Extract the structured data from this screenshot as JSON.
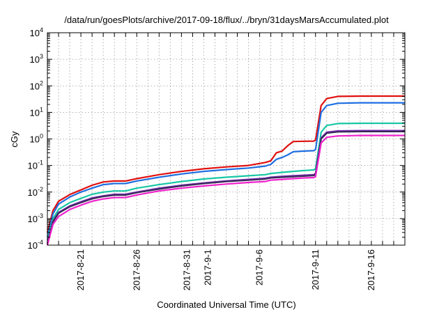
{
  "chart_data": {
    "type": "line",
    "title": "/data/run/goesPlots/archive/2017-09-18/flux/../bryn/31daysMarsAccumulated.plot",
    "xlabel": "Coordinated Universal Time (UTC)",
    "ylabel": "cGy",
    "yscale": "log",
    "ylim": [
      0.0001,
      10000
    ],
    "xlim": [
      "2017-08-18",
      "2017-09-19"
    ],
    "x_ticks": [
      "2017-8-21",
      "2017-8-26",
      "2017-8-31",
      "2017-9-1",
      "2017-9-6",
      "2017-9-11",
      "2017-9-16"
    ],
    "y_ticks": [
      {
        "base": "10",
        "exp": "-4"
      },
      {
        "base": "10",
        "exp": "-3"
      },
      {
        "base": "10",
        "exp": "-2"
      },
      {
        "base": "10",
        "exp": "-1"
      },
      {
        "base": "10",
        "exp": "0"
      },
      {
        "base": "10",
        "exp": "1"
      },
      {
        "base": "10",
        "exp": "2"
      },
      {
        "base": "10",
        "exp": "3"
      },
      {
        "base": "10",
        "exp": "4"
      }
    ],
    "grid": true,
    "legend": "none",
    "series": [
      {
        "color": "#e01010",
        "x": [
          "2017-08-18",
          "2017-08-18 12:00",
          "2017-08-19",
          "2017-08-20",
          "2017-08-21",
          "2017-08-22",
          "2017-08-23",
          "2017-08-24",
          "2017-08-25",
          "2017-08-26",
          "2017-08-28",
          "2017-08-30",
          "2017-09-01",
          "2017-09-03",
          "2017-09-05",
          "2017-09-06 12:00",
          "2017-09-07",
          "2017-09-07 12:00",
          "2017-09-08",
          "2017-09-08 12:00",
          "2017-09-09",
          "2017-09-10",
          "2017-09-10 20:00",
          "2017-09-11",
          "2017-09-11 12:00",
          "2017-09-12",
          "2017-09-13",
          "2017-09-15",
          "2017-09-19"
        ],
        "y": [
          0.0003,
          0.002,
          0.0045,
          0.008,
          0.012,
          0.018,
          0.024,
          0.026,
          0.026,
          0.032,
          0.045,
          0.06,
          0.075,
          0.088,
          0.1,
          0.13,
          0.15,
          0.3,
          0.35,
          0.55,
          0.8,
          0.82,
          0.83,
          0.9,
          18,
          33,
          40,
          41,
          41
        ]
      },
      {
        "color": "#1f6fe0",
        "x": [
          "2017-08-18",
          "2017-08-18 12:00",
          "2017-08-19",
          "2017-08-20",
          "2017-08-21",
          "2017-08-22",
          "2017-08-23",
          "2017-08-24",
          "2017-08-25",
          "2017-08-26",
          "2017-08-28",
          "2017-08-30",
          "2017-09-01",
          "2017-09-03",
          "2017-09-05",
          "2017-09-06 12:00",
          "2017-09-07",
          "2017-09-07 12:00",
          "2017-09-08",
          "2017-09-08 12:00",
          "2017-09-09",
          "2017-09-10",
          "2017-09-10 20:00",
          "2017-09-11",
          "2017-09-11 12:00",
          "2017-09-12",
          "2017-09-13",
          "2017-09-15",
          "2017-09-19"
        ],
        "y": [
          0.0002,
          0.0015,
          0.0035,
          0.0065,
          0.01,
          0.014,
          0.019,
          0.021,
          0.021,
          0.026,
          0.036,
          0.048,
          0.06,
          0.07,
          0.08,
          0.095,
          0.11,
          0.17,
          0.2,
          0.25,
          0.33,
          0.35,
          0.36,
          0.4,
          10,
          18,
          22,
          23,
          23
        ]
      },
      {
        "color": "#19c7a6",
        "x": [
          "2017-08-18",
          "2017-08-18 12:00",
          "2017-08-19",
          "2017-08-20",
          "2017-08-21",
          "2017-08-22",
          "2017-08-23",
          "2017-08-24",
          "2017-08-25",
          "2017-08-26",
          "2017-08-28",
          "2017-08-30",
          "2017-09-01",
          "2017-09-03",
          "2017-09-05",
          "2017-09-06 12:00",
          "2017-09-07",
          "2017-09-08",
          "2017-09-09",
          "2017-09-10",
          "2017-09-10 20:00",
          "2017-09-11",
          "2017-09-11 12:00",
          "2017-09-12",
          "2017-09-13",
          "2017-09-15",
          "2017-09-19"
        ],
        "y": [
          0.00015,
          0.001,
          0.0022,
          0.004,
          0.0058,
          0.0082,
          0.01,
          0.011,
          0.011,
          0.014,
          0.019,
          0.025,
          0.031,
          0.036,
          0.041,
          0.045,
          0.05,
          0.055,
          0.06,
          0.065,
          0.068,
          0.075,
          1.8,
          3.2,
          3.8,
          3.9,
          3.9
        ]
      },
      {
        "color": "#7a2ab5",
        "x": [
          "2017-08-18",
          "2017-08-18 12:00",
          "2017-08-19",
          "2017-08-20",
          "2017-08-21",
          "2017-08-22",
          "2017-08-23",
          "2017-08-24",
          "2017-08-25",
          "2017-08-26",
          "2017-08-28",
          "2017-08-30",
          "2017-09-01",
          "2017-09-03",
          "2017-09-05",
          "2017-09-06 12:00",
          "2017-09-07",
          "2017-09-08",
          "2017-09-09",
          "2017-09-10",
          "2017-09-10 20:00",
          "2017-09-11",
          "2017-09-11 12:00",
          "2017-09-12",
          "2017-09-13",
          "2017-09-15",
          "2017-09-19"
        ],
        "y": [
          0.00012,
          0.0008,
          0.0017,
          0.003,
          0.0043,
          0.006,
          0.0072,
          0.0082,
          0.0082,
          0.01,
          0.014,
          0.018,
          0.022,
          0.026,
          0.03,
          0.033,
          0.036,
          0.039,
          0.041,
          0.043,
          0.045,
          0.05,
          1.1,
          1.8,
          2.0,
          2.05,
          2.05
        ]
      },
      {
        "color": "#3a2a5a",
        "x": [
          "2017-08-18",
          "2017-08-18 12:00",
          "2017-08-19",
          "2017-08-20",
          "2017-08-21",
          "2017-08-22",
          "2017-08-23",
          "2017-08-24",
          "2017-08-25",
          "2017-08-26",
          "2017-08-28",
          "2017-08-30",
          "2017-09-01",
          "2017-09-03",
          "2017-09-05",
          "2017-09-06 12:00",
          "2017-09-07",
          "2017-09-08",
          "2017-09-09",
          "2017-09-10",
          "2017-09-10 20:00",
          "2017-09-11",
          "2017-09-11 12:00",
          "2017-09-12",
          "2017-09-13",
          "2017-09-15",
          "2017-09-19"
        ],
        "y": [
          0.00011,
          0.00075,
          0.0016,
          0.0028,
          0.004,
          0.0056,
          0.0068,
          0.0077,
          0.0077,
          0.0095,
          0.013,
          0.017,
          0.021,
          0.025,
          0.028,
          0.031,
          0.034,
          0.036,
          0.038,
          0.04,
          0.042,
          0.046,
          1.0,
          1.65,
          1.85,
          1.9,
          1.9
        ]
      },
      {
        "color": "#ee22cc",
        "x": [
          "2017-08-18",
          "2017-08-18 12:00",
          "2017-08-19",
          "2017-08-20",
          "2017-08-21",
          "2017-08-22",
          "2017-08-23",
          "2017-08-24",
          "2017-08-25",
          "2017-08-26",
          "2017-08-28",
          "2017-08-30",
          "2017-09-01",
          "2017-09-03",
          "2017-09-05",
          "2017-09-06 12:00",
          "2017-09-07",
          "2017-09-08",
          "2017-09-09",
          "2017-09-10",
          "2017-09-10 20:00",
          "2017-09-11",
          "2017-09-11 12:00",
          "2017-09-12",
          "2017-09-13",
          "2017-09-15",
          "2017-09-19"
        ],
        "y": [
          0.0001,
          0.0006,
          0.0012,
          0.0022,
          0.0032,
          0.0045,
          0.0055,
          0.0062,
          0.0062,
          0.0078,
          0.011,
          0.014,
          0.017,
          0.02,
          0.023,
          0.025,
          0.028,
          0.03,
          0.032,
          0.034,
          0.035,
          0.038,
          0.7,
          1.15,
          1.3,
          1.35,
          1.35
        ]
      }
    ]
  }
}
